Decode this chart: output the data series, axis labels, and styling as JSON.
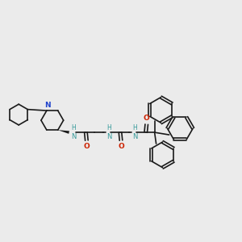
{
  "background_color": "#ebebeb",
  "bond_color": "#1a1a1a",
  "nitrogen_color": "#2244cc",
  "oxygen_color": "#cc2200",
  "nh_color": "#339999",
  "figsize": [
    3.0,
    3.0
  ],
  "dpi": 100,
  "xlim": [
    0,
    300
  ],
  "ylim": [
    0,
    300
  ]
}
